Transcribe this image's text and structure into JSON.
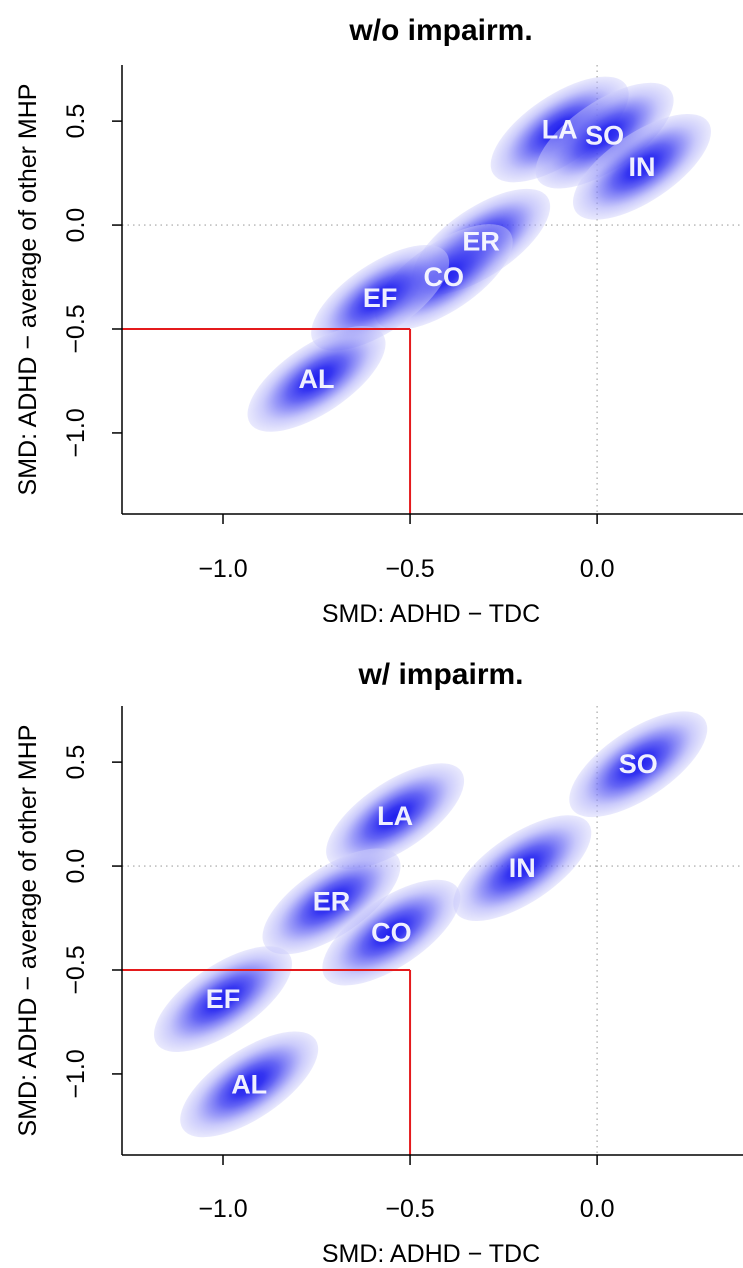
{
  "chart_data": [
    {
      "type": "scatter",
      "title": "w/o impairm.",
      "xlabel": "SMD: ADHD − TDC",
      "ylabel": "SMD: ADHD − average of other MHP",
      "xlim": [
        -1.27,
        0.39
      ],
      "ylim": [
        -1.39,
        0.77
      ],
      "xticks": [
        -1.0,
        -0.5,
        0.0
      ],
      "xtick_labels": [
        "−1.0",
        "−0.5",
        "0.0"
      ],
      "yticks": [
        -1.0,
        -0.5,
        0.0,
        0.5
      ],
      "ytick_labels": [
        "−1.0",
        "−0.5",
        "0.0",
        "0.5"
      ],
      "reference_lines": {
        "x": 0.0,
        "y": 0.0,
        "style": "dotted grey"
      },
      "threshold_box": {
        "x": -0.5,
        "y": -0.5,
        "color": "#e41a1c"
      },
      "points": [
        {
          "label": "LA",
          "x": -0.1,
          "y": 0.46
        },
        {
          "label": "SO",
          "x": 0.02,
          "y": 0.43
        },
        {
          "label": "IN",
          "x": 0.12,
          "y": 0.28
        },
        {
          "label": "ER",
          "x": -0.31,
          "y": -0.08
        },
        {
          "label": "CO",
          "x": -0.41,
          "y": -0.25
        },
        {
          "label": "EF",
          "x": -0.58,
          "y": -0.35
        },
        {
          "label": "AL",
          "x": -0.75,
          "y": -0.74
        }
      ]
    },
    {
      "type": "scatter",
      "title": "w/ impairm.",
      "xlabel": "SMD: ADHD − TDC",
      "ylabel": "SMD: ADHD − average of other MHP",
      "xlim": [
        -1.27,
        0.39
      ],
      "ylim": [
        -1.39,
        0.77
      ],
      "xticks": [
        -1.0,
        -0.5,
        0.0
      ],
      "xtick_labels": [
        "−1.0",
        "−0.5",
        "0.0"
      ],
      "yticks": [
        -1.0,
        -0.5,
        0.0,
        0.5
      ],
      "ytick_labels": [
        "−1.0",
        "−0.5",
        "0.0",
        "0.5"
      ],
      "reference_lines": {
        "x": 0.0,
        "y": 0.0,
        "style": "dotted grey"
      },
      "threshold_box": {
        "x": -0.5,
        "y": -0.5,
        "color": "#e41a1c"
      },
      "points": [
        {
          "label": "SO",
          "x": 0.11,
          "y": 0.49
        },
        {
          "label": "LA",
          "x": -0.54,
          "y": 0.24
        },
        {
          "label": "IN",
          "x": -0.2,
          "y": -0.01
        },
        {
          "label": "ER",
          "x": -0.71,
          "y": -0.17
        },
        {
          "label": "CO",
          "x": -0.55,
          "y": -0.32
        },
        {
          "label": "EF",
          "x": -1.0,
          "y": -0.64
        },
        {
          "label": "AL",
          "x": -0.93,
          "y": -1.05
        }
      ]
    }
  ]
}
